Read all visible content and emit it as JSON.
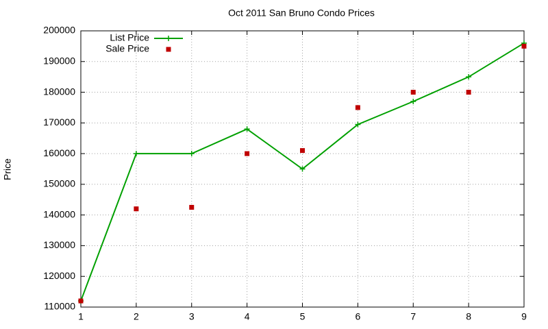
{
  "chart_data": {
    "type": "line",
    "title": "Oct 2011 San Bruno Condo Prices",
    "y_label": "Price",
    "x": [
      1,
      2,
      3,
      4,
      5,
      6,
      7,
      8,
      9
    ],
    "series": [
      {
        "name": "List Price",
        "color": "#00a000",
        "line": true,
        "marker": "plus",
        "values": [
          112000,
          160000,
          160000,
          168000,
          155000,
          169500,
          177000,
          185000,
          196000
        ]
      },
      {
        "name": "Sale Price",
        "color": "#c00000",
        "line": false,
        "marker": "square",
        "values": [
          112000,
          142000,
          142500,
          160000,
          161000,
          175000,
          180000,
          180000,
          195000
        ]
      }
    ],
    "xlim": [
      1,
      9
    ],
    "xticks": [
      1,
      2,
      3,
      4,
      5,
      6,
      7,
      8,
      9
    ],
    "ylim": [
      110000,
      200000
    ],
    "yticks": [
      110000,
      120000,
      130000,
      140000,
      150000,
      160000,
      170000,
      180000,
      190000,
      200000
    ],
    "grid": true,
    "legend": "top-left"
  }
}
